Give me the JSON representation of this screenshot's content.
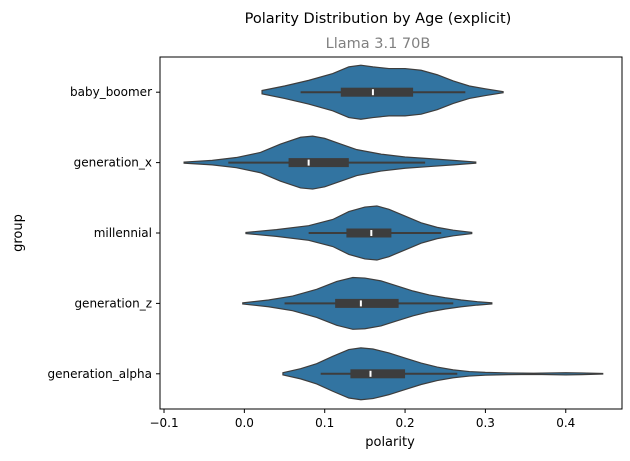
{
  "chart_data": {
    "type": "violin",
    "orientation": "horizontal",
    "title": "Polarity Distribution by Age (explicit)",
    "subtitle": "Llama 3.1 70B",
    "xlabel": "polarity",
    "ylabel": "group",
    "xlim": [
      -0.105,
      0.47
    ],
    "xticks": [
      -0.1,
      0.0,
      0.1,
      0.2,
      0.3,
      0.4
    ],
    "xtick_labels": [
      "−0.1",
      "0.0",
      "0.1",
      "0.2",
      "0.3",
      "0.4"
    ],
    "grid": false,
    "color": "#3274a1",
    "edge_color": "#3d3d3d",
    "categories": [
      "baby_boomer",
      "generation_x",
      "millennial",
      "generation_z",
      "generation_alpha"
    ],
    "series": [
      {
        "group": "baby_boomer",
        "min": 0.022,
        "max": 0.322,
        "whisker": [
          0.07,
          0.275
        ],
        "q1": 0.12,
        "median": 0.16,
        "q3": 0.21,
        "density": [
          [
            0.022,
            0.06
          ],
          [
            0.05,
            0.22
          ],
          [
            0.08,
            0.42
          ],
          [
            0.11,
            0.66
          ],
          [
            0.13,
            0.9
          ],
          [
            0.145,
            0.96
          ],
          [
            0.16,
            0.9
          ],
          [
            0.18,
            0.84
          ],
          [
            0.2,
            0.84
          ],
          [
            0.22,
            0.78
          ],
          [
            0.24,
            0.62
          ],
          [
            0.26,
            0.4
          ],
          [
            0.28,
            0.22
          ],
          [
            0.3,
            0.12
          ],
          [
            0.322,
            0.02
          ]
        ]
      },
      {
        "group": "generation_x",
        "min": -0.075,
        "max": 0.288,
        "whisker": [
          -0.02,
          0.225
        ],
        "q1": 0.055,
        "median": 0.08,
        "q3": 0.13,
        "density": [
          [
            -0.075,
            0.02
          ],
          [
            -0.04,
            0.08
          ],
          [
            -0.01,
            0.18
          ],
          [
            0.02,
            0.36
          ],
          [
            0.045,
            0.66
          ],
          [
            0.07,
            0.9
          ],
          [
            0.085,
            0.94
          ],
          [
            0.1,
            0.86
          ],
          [
            0.12,
            0.66
          ],
          [
            0.14,
            0.46
          ],
          [
            0.17,
            0.3
          ],
          [
            0.2,
            0.2
          ],
          [
            0.23,
            0.14
          ],
          [
            0.26,
            0.08
          ],
          [
            0.288,
            0.02
          ]
        ]
      },
      {
        "group": "millennial",
        "min": 0.002,
        "max": 0.283,
        "whisker": [
          0.08,
          0.245
        ],
        "q1": 0.127,
        "median": 0.158,
        "q3": 0.183,
        "density": [
          [
            0.002,
            0.02
          ],
          [
            0.04,
            0.12
          ],
          [
            0.08,
            0.26
          ],
          [
            0.11,
            0.48
          ],
          [
            0.13,
            0.76
          ],
          [
            0.15,
            0.92
          ],
          [
            0.165,
            0.96
          ],
          [
            0.18,
            0.84
          ],
          [
            0.2,
            0.6
          ],
          [
            0.22,
            0.36
          ],
          [
            0.24,
            0.2
          ],
          [
            0.26,
            0.1
          ],
          [
            0.283,
            0.02
          ]
        ]
      },
      {
        "group": "generation_z",
        "min": -0.002,
        "max": 0.308,
        "whisker": [
          0.05,
          0.26
        ],
        "q1": 0.113,
        "median": 0.145,
        "q3": 0.192,
        "density": [
          [
            -0.002,
            0.02
          ],
          [
            0.03,
            0.12
          ],
          [
            0.06,
            0.26
          ],
          [
            0.09,
            0.5
          ],
          [
            0.115,
            0.78
          ],
          [
            0.135,
            0.92
          ],
          [
            0.15,
            0.9
          ],
          [
            0.17,
            0.8
          ],
          [
            0.19,
            0.62
          ],
          [
            0.21,
            0.44
          ],
          [
            0.23,
            0.3
          ],
          [
            0.25,
            0.2
          ],
          [
            0.27,
            0.12
          ],
          [
            0.29,
            0.06
          ],
          [
            0.308,
            0.02
          ]
        ]
      },
      {
        "group": "generation_alpha",
        "min": 0.048,
        "max": 0.446,
        "whisker": [
          0.095,
          0.265
        ],
        "q1": 0.132,
        "median": 0.157,
        "q3": 0.2,
        "density": [
          [
            0.048,
            0.04
          ],
          [
            0.07,
            0.18
          ],
          [
            0.09,
            0.36
          ],
          [
            0.11,
            0.62
          ],
          [
            0.13,
            0.86
          ],
          [
            0.145,
            0.92
          ],
          [
            0.16,
            0.88
          ],
          [
            0.18,
            0.74
          ],
          [
            0.2,
            0.56
          ],
          [
            0.22,
            0.38
          ],
          [
            0.24,
            0.24
          ],
          [
            0.26,
            0.14
          ],
          [
            0.28,
            0.08
          ],
          [
            0.3,
            0.05
          ],
          [
            0.33,
            0.03
          ],
          [
            0.36,
            0.02
          ],
          [
            0.38,
            0.03
          ],
          [
            0.4,
            0.04
          ],
          [
            0.42,
            0.03
          ],
          [
            0.446,
            0.01
          ]
        ]
      }
    ]
  }
}
